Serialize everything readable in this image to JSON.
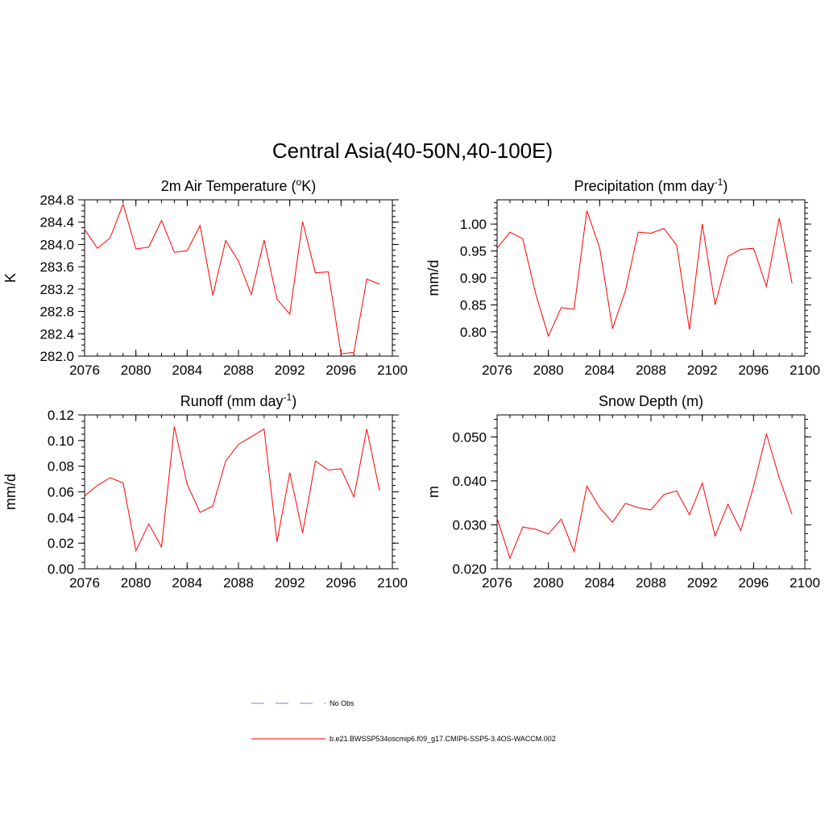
{
  "figure": {
    "title": "Central Asia(40-50N,40-100E)"
  },
  "chart_data": [
    {
      "type": "line",
      "title": "2m Air Temperature (",
      "title_sup": "o",
      "title_after": "K)",
      "xlabel": "",
      "ylabel": "K",
      "xlim": [
        2076,
        2100
      ],
      "ylim": [
        282.0,
        284.8
      ],
      "xticks": [
        2076,
        2080,
        2084,
        2088,
        2092,
        2096,
        2100
      ],
      "xminor": 1,
      "yticks": [
        282.0,
        282.4,
        282.8,
        283.2,
        283.6,
        284.0,
        284.4,
        284.8
      ],
      "ytick_labels": [
        "282.0",
        "282.4",
        "282.8",
        "283.2",
        "283.6",
        "284.0",
        "284.4",
        "284.8"
      ],
      "yminor": 0.1,
      "x": [
        2076,
        2077,
        2078,
        2079,
        2080,
        2081,
        2082,
        2083,
        2084,
        2085,
        2086,
        2087,
        2088,
        2089,
        2090,
        2091,
        2092,
        2093,
        2094,
        2095,
        2096,
        2097,
        2098,
        2099
      ],
      "values": [
        284.27,
        283.93,
        284.12,
        284.72,
        283.92,
        283.95,
        284.43,
        283.86,
        283.89,
        284.34,
        283.09,
        284.07,
        283.7,
        283.1,
        284.08,
        283.02,
        282.75,
        284.41,
        283.49,
        283.51,
        282.04,
        282.07,
        283.38,
        283.29
      ]
    },
    {
      "type": "line",
      "title": "Precipitation (mm day",
      "title_sup": "-1",
      "title_after": ")",
      "xlabel": "",
      "ylabel": "mm/d",
      "xlim": [
        2076,
        2100
      ],
      "ylim": [
        0.755,
        1.045
      ],
      "xticks": [
        2076,
        2080,
        2084,
        2088,
        2092,
        2096,
        2100
      ],
      "xminor": 1,
      "yticks": [
        0.8,
        0.85,
        0.9,
        0.95,
        1.0
      ],
      "ytick_labels": [
        "0.80",
        "0.85",
        "0.90",
        "0.95",
        "1.00"
      ],
      "yminor": 0.01,
      "x": [
        2076,
        2077,
        2078,
        2079,
        2080,
        2081,
        2082,
        2083,
        2084,
        2085,
        2086,
        2087,
        2088,
        2089,
        2090,
        2091,
        2092,
        2093,
        2094,
        2095,
        2096,
        2097,
        2098,
        2099
      ],
      "values": [
        0.955,
        0.985,
        0.973,
        0.871,
        0.792,
        0.845,
        0.842,
        1.025,
        0.956,
        0.806,
        0.876,
        0.985,
        0.983,
        0.992,
        0.961,
        0.804,
        1.0,
        0.85,
        0.94,
        0.953,
        0.955,
        0.884,
        1.011,
        0.89
      ]
    },
    {
      "type": "line",
      "title": "Runoff (mm day",
      "title_sup": "-1",
      "title_after": ")",
      "xlabel": "",
      "ylabel": "mm/d",
      "xlim": [
        2076,
        2100
      ],
      "ylim": [
        0.0,
        0.12
      ],
      "xticks": [
        2076,
        2080,
        2084,
        2088,
        2092,
        2096,
        2100
      ],
      "xminor": 1,
      "yticks": [
        0.0,
        0.02,
        0.04,
        0.06,
        0.08,
        0.1,
        0.12
      ],
      "ytick_labels": [
        "0.00",
        "0.02",
        "0.04",
        "0.06",
        "0.08",
        "0.10",
        "0.12"
      ],
      "yminor": 0.005,
      "x": [
        2076,
        2077,
        2078,
        2079,
        2080,
        2081,
        2082,
        2083,
        2084,
        2085,
        2086,
        2087,
        2088,
        2089,
        2090,
        2091,
        2092,
        2093,
        2094,
        2095,
        2096,
        2097,
        2098,
        2099
      ],
      "values": [
        0.057,
        0.065,
        0.071,
        0.067,
        0.014,
        0.035,
        0.017,
        0.111,
        0.066,
        0.044,
        0.049,
        0.084,
        0.097,
        0.103,
        0.109,
        0.021,
        0.075,
        0.028,
        0.084,
        0.077,
        0.078,
        0.056,
        0.109,
        0.061
      ]
    },
    {
      "type": "line",
      "title": "Snow Depth (m)",
      "title_sup": "",
      "title_after": "",
      "xlabel": "",
      "ylabel": "m",
      "xlim": [
        2076,
        2100
      ],
      "ylim": [
        0.02,
        0.055
      ],
      "xticks": [
        2076,
        2080,
        2084,
        2088,
        2092,
        2096,
        2100
      ],
      "xminor": 1,
      "yticks": [
        0.02,
        0.03,
        0.04,
        0.05
      ],
      "ytick_labels": [
        "0.020",
        "0.030",
        "0.040",
        "0.050"
      ],
      "yminor": 0.002,
      "x": [
        2076,
        2077,
        2078,
        2079,
        2080,
        2081,
        2082,
        2083,
        2084,
        2085,
        2086,
        2087,
        2088,
        2089,
        2090,
        2091,
        2092,
        2093,
        2094,
        2095,
        2096,
        2097,
        2098,
        2099
      ],
      "values": [
        0.0315,
        0.0224,
        0.0295,
        0.029,
        0.0279,
        0.0313,
        0.0239,
        0.0388,
        0.0339,
        0.0306,
        0.0349,
        0.0339,
        0.0334,
        0.0369,
        0.0377,
        0.0323,
        0.0395,
        0.0275,
        0.0347,
        0.0287,
        0.0387,
        0.0507,
        0.0407,
        0.0324
      ]
    }
  ],
  "legend": [
    {
      "label": "No Obs",
      "color": "#9a9ae8",
      "style": "dashed"
    },
    {
      "label": "b.e21.BWSSP534oscmip6.f09_g17.CMIP6-SSP5-3.4OS-WACCM.002",
      "color": "#ff0000",
      "style": "solid"
    }
  ],
  "colors": {
    "series": "#ff0000",
    "axes": "#000000"
  }
}
